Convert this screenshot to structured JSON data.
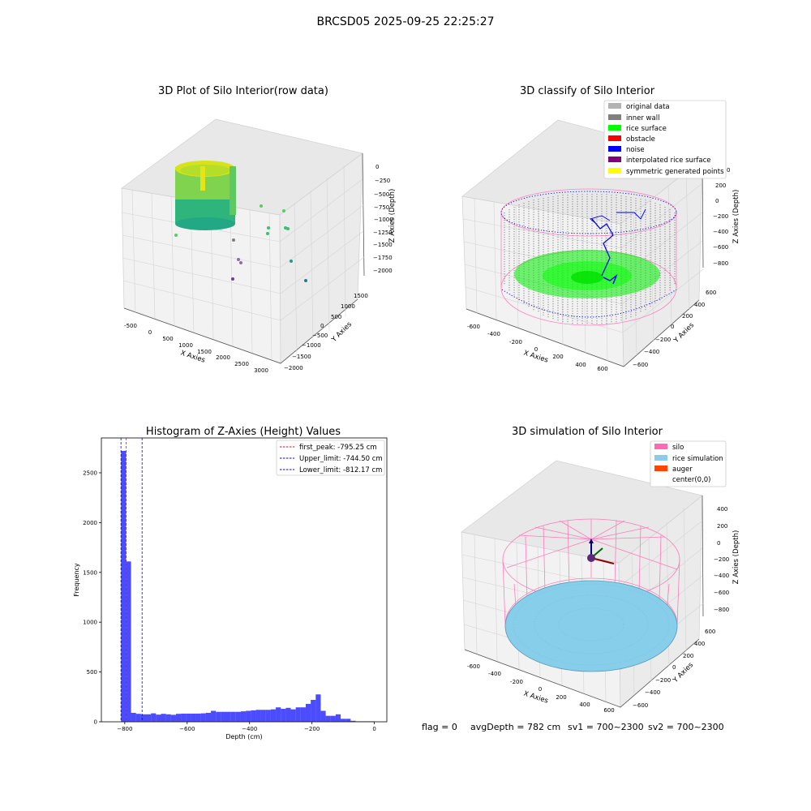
{
  "suptitle": "BRCSD05 2025-09-25 22:25:27",
  "panels": {
    "raw": {
      "title": "3D Plot of Silo Interior(row data)",
      "xlabel": "X Axies",
      "ylabel": "Y Axies",
      "zlabel": "Z Axies (Depth)",
      "xticks": [
        "-500",
        "0",
        "500",
        "1000",
        "1500",
        "2000",
        "2500",
        "3000"
      ],
      "yticks": [
        "1500",
        "1000",
        "500",
        "0",
        "−500",
        "−1000",
        "−1500",
        "−2000"
      ],
      "zticks": [
        "0",
        "−250",
        "−500",
        "−750",
        "−1000",
        "−1250",
        "−1500",
        "−1750",
        "−2000"
      ]
    },
    "classify": {
      "title": "3D classify of Silo Interior",
      "xlabel": "X Axies",
      "ylabel": "Y Axies",
      "zlabel": "Z Axies (Depth)",
      "xticks": [
        "-600",
        "-400",
        "-200",
        "0",
        "200",
        "400",
        "600"
      ],
      "yticks": [
        "600",
        "400",
        "200",
        "0",
        "−200",
        "−400",
        "−600"
      ],
      "zticks": [
        "200",
        "0",
        "−200",
        "−400",
        "−600",
        "−800"
      ],
      "ztick_partial": "0",
      "legend": [
        {
          "label": "original data",
          "color": "#b3b3b3"
        },
        {
          "label": "inner wall",
          "color": "#808080"
        },
        {
          "label": "rice surface",
          "color": "#00ff00"
        },
        {
          "label": "obstacle",
          "color": "#ff0000"
        },
        {
          "label": "noise",
          "color": "#0000ff"
        },
        {
          "label": "interpolated rice surface",
          "color": "#800080"
        },
        {
          "label": "symmetric generated points",
          "color": "#ffff00"
        }
      ]
    },
    "hist": {
      "title": "Histogram of Z-Axies (Height) Values",
      "xlabel": "Depth (cm)",
      "ylabel": "Frequency",
      "xticks": [
        "−800",
        "−600",
        "−400",
        "−200",
        "0"
      ],
      "yticks": [
        "0",
        "500",
        "1000",
        "1500",
        "2000",
        "2500"
      ],
      "legend": [
        {
          "label": "first_peak: -795.25 cm",
          "color": "#ff0000"
        },
        {
          "label": "Upper_limit: -744.50 cm",
          "color": "#0000ff"
        },
        {
          "label": "Lower_limit: -812.17 cm",
          "color": "#0000ff"
        }
      ]
    },
    "sim": {
      "title": "3D simulation of Silo Interior",
      "xlabel": "X Axies",
      "ylabel": "Y Axies",
      "zlabel": "Z Axies (Depth)",
      "xticks": [
        "-600",
        "-400",
        "-200",
        "0",
        "200",
        "400",
        "600"
      ],
      "yticks": [
        "600",
        "400",
        "200",
        "0",
        "−200",
        "−400",
        "−600"
      ],
      "zticks": [
        "400",
        "200",
        "0",
        "−200",
        "−400",
        "−600",
        "−800"
      ],
      "legend": [
        {
          "label": "silo",
          "color": "#ff69b4"
        },
        {
          "label": "rice simulation",
          "color": "#87ceeb"
        },
        {
          "label": "auger",
          "color": "#ff4500"
        },
        {
          "label": "center(0,0)",
          "color": "#ffffff"
        }
      ]
    }
  },
  "footer": {
    "flag": "flag = 0",
    "avg": "avgDepth = 782 cm",
    "sv1": "sv1 = 700~2300",
    "sv2": "sv2 = 700~2300"
  },
  "chart_data": [
    {
      "type": "scatter",
      "title": "3D Plot of Silo Interior(row data)",
      "xlabel": "X Axies",
      "ylabel": "Y Axies",
      "zlabel": "Z Axies (Depth)",
      "xlim": [
        -600,
        3200
      ],
      "ylim": [
        -2000,
        1700
      ],
      "zlim": [
        -2050,
        100
      ],
      "grid": true
    },
    {
      "type": "scatter",
      "title": "3D classify of Silo Interior",
      "xlabel": "X Axies",
      "ylabel": "Y Axies",
      "zlabel": "Z Axies (Depth)",
      "xlim": [
        -650,
        650
      ],
      "ylim": [
        -650,
        650
      ],
      "zlim": [
        -850,
        250
      ],
      "series": [
        {
          "name": "original data"
        },
        {
          "name": "inner wall"
        },
        {
          "name": "rice surface"
        },
        {
          "name": "obstacle"
        },
        {
          "name": "noise"
        },
        {
          "name": "interpolated rice surface"
        },
        {
          "name": "symmetric generated points"
        }
      ],
      "legend_position": "top-right",
      "grid": true
    },
    {
      "type": "bar",
      "title": "Histogram of Z-Axies (Height) Values",
      "xlabel": "Depth (cm)",
      "ylabel": "Frequency",
      "xlim": [
        -875,
        40
      ],
      "ylim": [
        0,
        2850
      ],
      "bin_edges": [
        -812,
        -796,
        -780,
        -764,
        -748,
        -732,
        -716,
        -700,
        -684,
        -668,
        -652,
        -636,
        -620,
        -604,
        -588,
        -572,
        -556,
        -540,
        -524,
        -508,
        -492,
        -476,
        -460,
        -444,
        -428,
        -412,
        -396,
        -380,
        -364,
        -348,
        -332,
        -316,
        -300,
        -284,
        -268,
        -252,
        -236,
        -220,
        -204,
        -188,
        -172,
        -156,
        -140,
        -124,
        -108,
        -92,
        -76,
        -60,
        -44,
        -28,
        -12,
        0
      ],
      "values": [
        2720,
        1610,
        90,
        80,
        75,
        75,
        85,
        72,
        80,
        75,
        70,
        80,
        82,
        82,
        82,
        82,
        85,
        90,
        110,
        100,
        100,
        100,
        100,
        100,
        105,
        110,
        115,
        120,
        120,
        120,
        125,
        145,
        130,
        140,
        125,
        145,
        145,
        180,
        220,
        275,
        110,
        60,
        60,
        75,
        30,
        30,
        10,
        5,
        5,
        5,
        5
      ],
      "vlines": [
        {
          "name": "first_peak: -795.25 cm",
          "x": -795.25
        },
        {
          "name": "Upper_limit: -744.50 cm",
          "x": -744.5
        },
        {
          "name": "Lower_limit: -812.17 cm",
          "x": -812.17
        }
      ],
      "legend_position": "top-right",
      "grid": false
    },
    {
      "type": "scatter",
      "title": "3D simulation of Silo Interior",
      "xlabel": "X Axies",
      "ylabel": "Y Axies",
      "zlabel": "Z Axies (Depth)",
      "xlim": [
        -650,
        650
      ],
      "ylim": [
        -650,
        650
      ],
      "zlim": [
        -850,
        450
      ],
      "series": [
        {
          "name": "silo"
        },
        {
          "name": "rice simulation"
        },
        {
          "name": "auger"
        },
        {
          "name": "center(0,0)"
        }
      ],
      "legend_position": "top-right",
      "grid": true
    }
  ]
}
